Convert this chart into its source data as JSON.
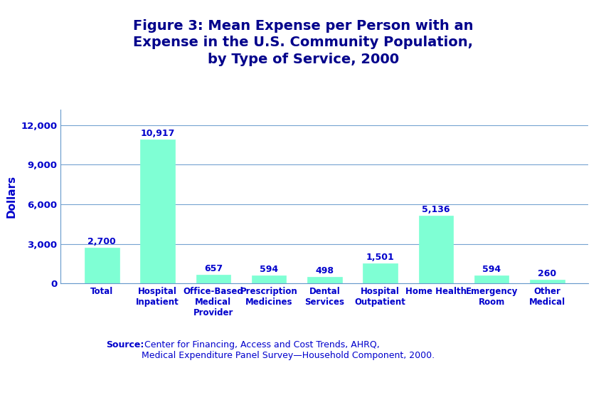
{
  "title": "Figure 3: Mean Expense per Person with an\nExpense in the U.S. Community Population,\nby Type of Service, 2000",
  "title_color": "#00008B",
  "title_fontsize": 14,
  "title_fontweight": "bold",
  "ylabel": "Dollars",
  "ylabel_color": "#0000CC",
  "ylabel_fontsize": 11,
  "categories": [
    "Total",
    "Hospital\nInpatient",
    "Office-Based\nMedical\nProvider",
    "Prescription\nMedicines",
    "Dental\nServices",
    "Hospital\nOutpatient",
    "Home Health",
    "Emergency\nRoom",
    "Other\nMedical"
  ],
  "values": [
    2700,
    10917,
    657,
    594,
    498,
    1501,
    5136,
    594,
    260
  ],
  "bar_labels": [
    "2,700",
    "10,917",
    "657",
    "594",
    "498",
    "1,501",
    "5,136",
    "594",
    "260"
  ],
  "bar_color": "#7FFFD4",
  "bar_edge_color": "#7FFFD4",
  "label_color": "#0000CC",
  "label_fontsize": 9,
  "yticks": [
    0,
    3000,
    6000,
    9000,
    12000
  ],
  "ytick_labels": [
    "0",
    "3,000",
    "6,000",
    "9,000",
    "12,000"
  ],
  "ylim": [
    0,
    13200
  ],
  "grid_color": "#6699CC",
  "grid_alpha": 0.9,
  "tick_color": "#0000CC",
  "tick_fontsize": 9.5,
  "xtick_color": "#0000CC",
  "xtick_fontsize": 8.5,
  "bg_color": "#FFFFFF",
  "source_bold": "Source:",
  "source_rest": " Center for Financing, Access and Cost Trends, AHRQ,\nMedical Expenditure Panel Survey—Household Component, 2000.",
  "source_fontsize": 9,
  "source_color": "#0000CC",
  "sep_thick_color": "#4477BB",
  "sep_thin_color": "#AACCEE"
}
